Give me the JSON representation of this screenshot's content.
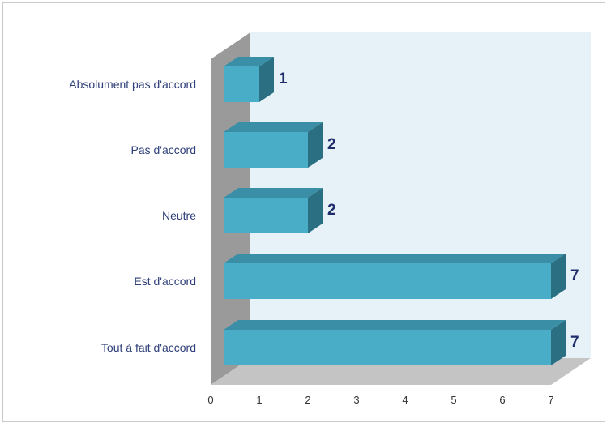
{
  "chart_data": {
    "type": "bar",
    "orientation": "horizontal",
    "style": "3d",
    "categories": [
      "Absolument pas d'accord",
      "Pas d'accord",
      "Neutre",
      "Est d'accord",
      "Tout à fait d'accord"
    ],
    "values": [
      1,
      2,
      2,
      7,
      7
    ],
    "data_labels": [
      "1",
      "2",
      "2",
      "7",
      "7"
    ],
    "xlim": [
      0,
      7
    ],
    "x_ticks": [
      "0",
      "1",
      "2",
      "3",
      "4",
      "5",
      "6",
      "7"
    ],
    "grid": false,
    "legend": "none",
    "colors": {
      "bar_front": "#4aadc7",
      "bar_top": "#3a8fa6",
      "bar_side": "#2a6f82",
      "back_wall": "#e6f1f8",
      "side_wall": "#9a9a9a",
      "floor": "#c4c4c4",
      "category_text": "#2e3f7a",
      "data_label_text": "#1f2d6b"
    }
  }
}
